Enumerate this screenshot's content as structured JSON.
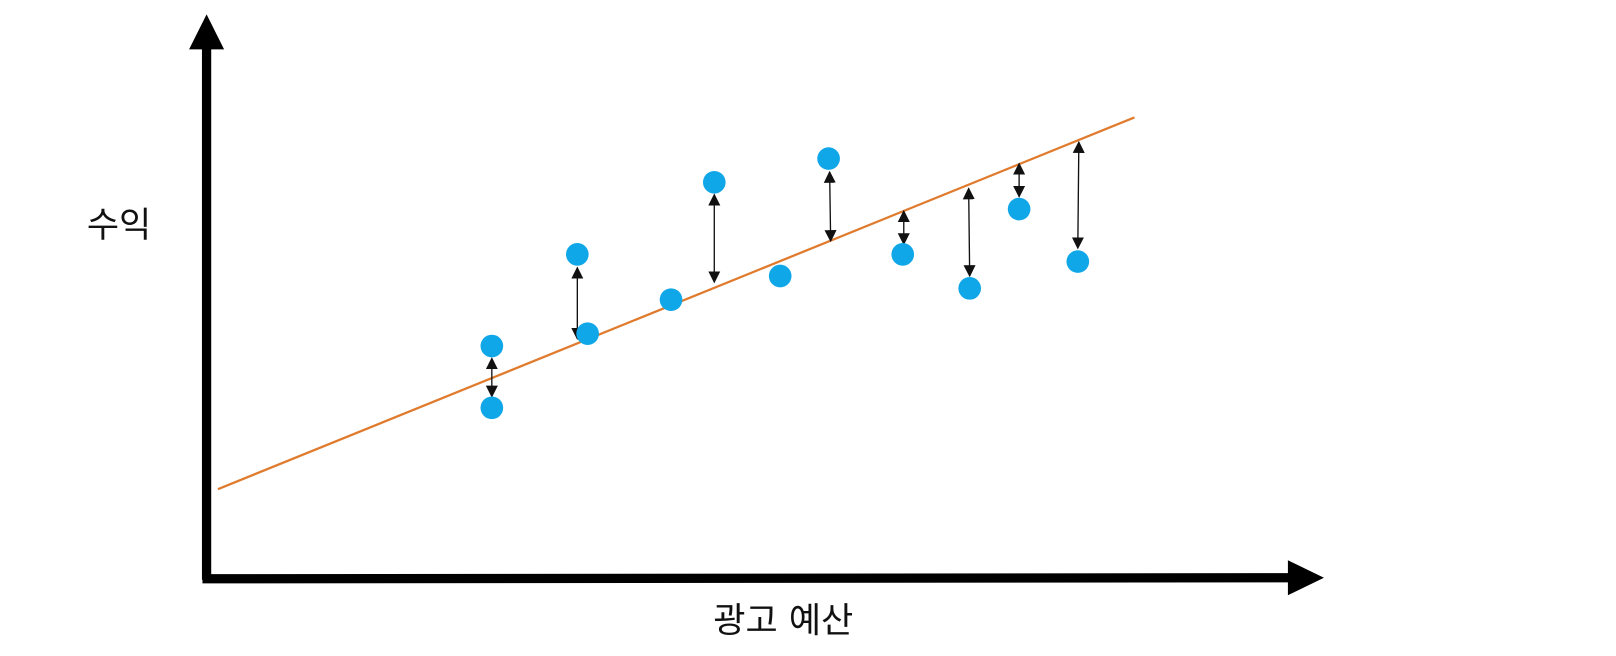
{
  "y_axis": {
    "label": "수익"
  },
  "x_axis": {
    "label": "광고 예산"
  }
}
